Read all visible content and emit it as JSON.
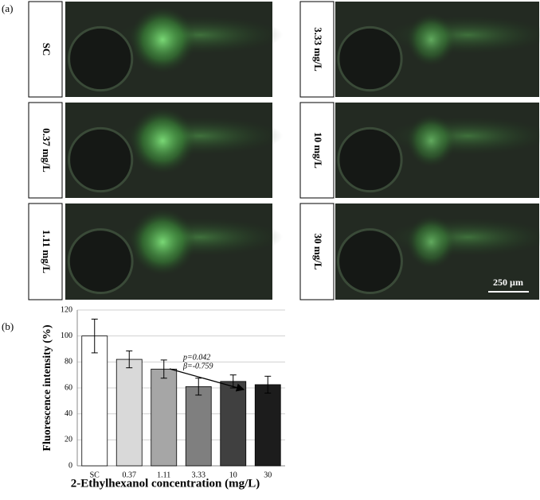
{
  "panel_labels": [
    "(a)",
    "(b)"
  ],
  "images": [
    {
      "label": "SC"
    },
    {
      "label": "0.37 mg/L"
    },
    {
      "label": "1.11 mg/L"
    },
    {
      "label": "3.33 mg/L"
    },
    {
      "label": "10 mg/L"
    },
    {
      "label": "30 mg/L"
    }
  ],
  "scale_bar": "250 µm",
  "chart_data": {
    "type": "bar",
    "xlabel": "2-Ethylhexanol concentration (mg/L)",
    "ylabel": "Fluorescence intensity (%)",
    "categories": [
      "SC",
      "0.37",
      "1.11",
      "3.33",
      "10",
      "30"
    ],
    "values": [
      100,
      82,
      74.5,
      61,
      65,
      62.5
    ],
    "errors": [
      13,
      6.5,
      7,
      6.5,
      5,
      6.5
    ],
    "colors": [
      "#ffffff",
      "#d9d9d9",
      "#a6a6a6",
      "#7f7f7f",
      "#404040",
      "#1c1c1c"
    ],
    "ylim": [
      0,
      120
    ],
    "yticks": [
      0,
      20,
      40,
      60,
      80,
      100,
      120
    ],
    "grid": true,
    "annotations": [
      "p=0.042",
      "β=-0.759"
    ]
  }
}
